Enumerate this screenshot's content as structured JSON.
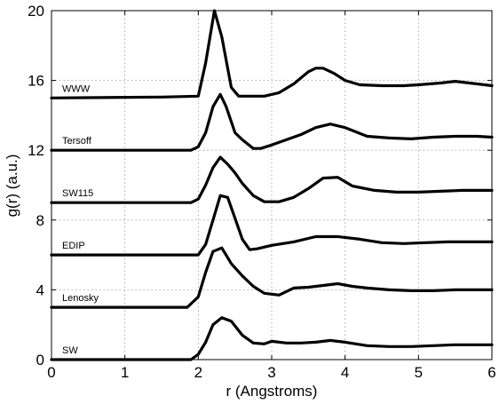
{
  "chart_data": {
    "type": "line",
    "title": "",
    "xlabel": "r (Angstroms)",
    "ylabel": "g(r) (a.u.)",
    "xlim": [
      0,
      6
    ],
    "ylim": [
      0,
      20
    ],
    "xticks": [
      0,
      1,
      2,
      3,
      4,
      5,
      6
    ],
    "yticks": [
      0,
      4,
      8,
      12,
      16,
      20
    ],
    "grid": true,
    "series": [
      {
        "name": "WWW",
        "x": [
          0,
          1.5,
          2.0,
          2.1,
          2.22,
          2.32,
          2.45,
          2.55,
          2.7,
          2.9,
          3.1,
          3.3,
          3.5,
          3.6,
          3.7,
          3.85,
          4.0,
          4.2,
          4.5,
          4.8,
          5.0,
          5.3,
          5.5,
          5.8,
          6.0
        ],
        "y": [
          15.0,
          15.05,
          15.1,
          17.0,
          20.0,
          18.5,
          15.6,
          15.1,
          15.1,
          15.1,
          15.3,
          15.8,
          16.5,
          16.7,
          16.7,
          16.4,
          16.0,
          15.75,
          15.7,
          15.7,
          15.75,
          15.85,
          15.95,
          15.8,
          15.7
        ]
      },
      {
        "name": "Tersoff",
        "x": [
          0,
          1.9,
          2.0,
          2.1,
          2.2,
          2.3,
          2.38,
          2.5,
          2.6,
          2.75,
          2.85,
          3.0,
          3.2,
          3.4,
          3.6,
          3.8,
          4.0,
          4.3,
          4.6,
          4.9,
          5.2,
          5.5,
          5.8,
          6.0
        ],
        "y": [
          12.0,
          12.0,
          12.2,
          13.0,
          14.5,
          15.2,
          14.5,
          13.0,
          12.6,
          12.1,
          12.1,
          12.3,
          12.6,
          12.9,
          13.3,
          13.5,
          13.3,
          12.8,
          12.7,
          12.65,
          12.75,
          12.8,
          12.8,
          12.75
        ]
      },
      {
        "name": "SW115",
        "x": [
          0,
          1.9,
          2.0,
          2.1,
          2.2,
          2.3,
          2.4,
          2.5,
          2.6,
          2.75,
          2.9,
          3.1,
          3.3,
          3.5,
          3.7,
          3.9,
          4.1,
          4.4,
          4.7,
          5.0,
          5.3,
          5.6,
          6.0
        ],
        "y": [
          9.0,
          9.0,
          9.2,
          10.0,
          11.0,
          11.6,
          11.2,
          10.7,
          10.1,
          9.4,
          9.05,
          9.05,
          9.3,
          9.8,
          10.4,
          10.45,
          9.95,
          9.7,
          9.6,
          9.6,
          9.65,
          9.7,
          9.7
        ]
      },
      {
        "name": "EDIP",
        "x": [
          0,
          2.0,
          2.1,
          2.2,
          2.3,
          2.4,
          2.5,
          2.6,
          2.7,
          2.8,
          3.0,
          3.3,
          3.6,
          3.9,
          4.2,
          4.5,
          4.8,
          5.1,
          5.4,
          5.7,
          6.0
        ],
        "y": [
          6.0,
          6.0,
          6.6,
          8.0,
          9.4,
          9.3,
          8.1,
          6.9,
          6.3,
          6.35,
          6.55,
          6.75,
          7.05,
          7.05,
          6.9,
          6.7,
          6.65,
          6.7,
          6.75,
          6.75,
          6.75
        ]
      },
      {
        "name": "Lenosky",
        "x": [
          0,
          1.85,
          2.0,
          2.1,
          2.2,
          2.32,
          2.45,
          2.6,
          2.75,
          2.9,
          3.1,
          3.3,
          3.5,
          3.7,
          3.9,
          4.1,
          4.3,
          4.6,
          4.9,
          5.2,
          5.5,
          5.8,
          6.0
        ],
        "y": [
          3.0,
          3.0,
          3.6,
          5.0,
          6.2,
          6.4,
          5.5,
          4.8,
          4.2,
          3.8,
          3.7,
          4.1,
          4.15,
          4.25,
          4.35,
          4.2,
          4.1,
          4.0,
          3.95,
          3.95,
          4.0,
          4.0,
          4.0
        ]
      },
      {
        "name": "SW",
        "x": [
          0,
          1.9,
          2.0,
          2.1,
          2.2,
          2.32,
          2.45,
          2.6,
          2.75,
          2.9,
          3.0,
          3.2,
          3.4,
          3.6,
          3.8,
          4.0,
          4.3,
          4.6,
          4.9,
          5.2,
          5.5,
          5.8,
          6.0
        ],
        "y": [
          0.0,
          0.0,
          0.3,
          1.0,
          2.0,
          2.4,
          2.2,
          1.4,
          0.95,
          0.9,
          1.05,
          0.95,
          0.95,
          1.0,
          1.1,
          1.0,
          0.8,
          0.75,
          0.75,
          0.8,
          0.85,
          0.85,
          0.85
        ]
      }
    ]
  }
}
